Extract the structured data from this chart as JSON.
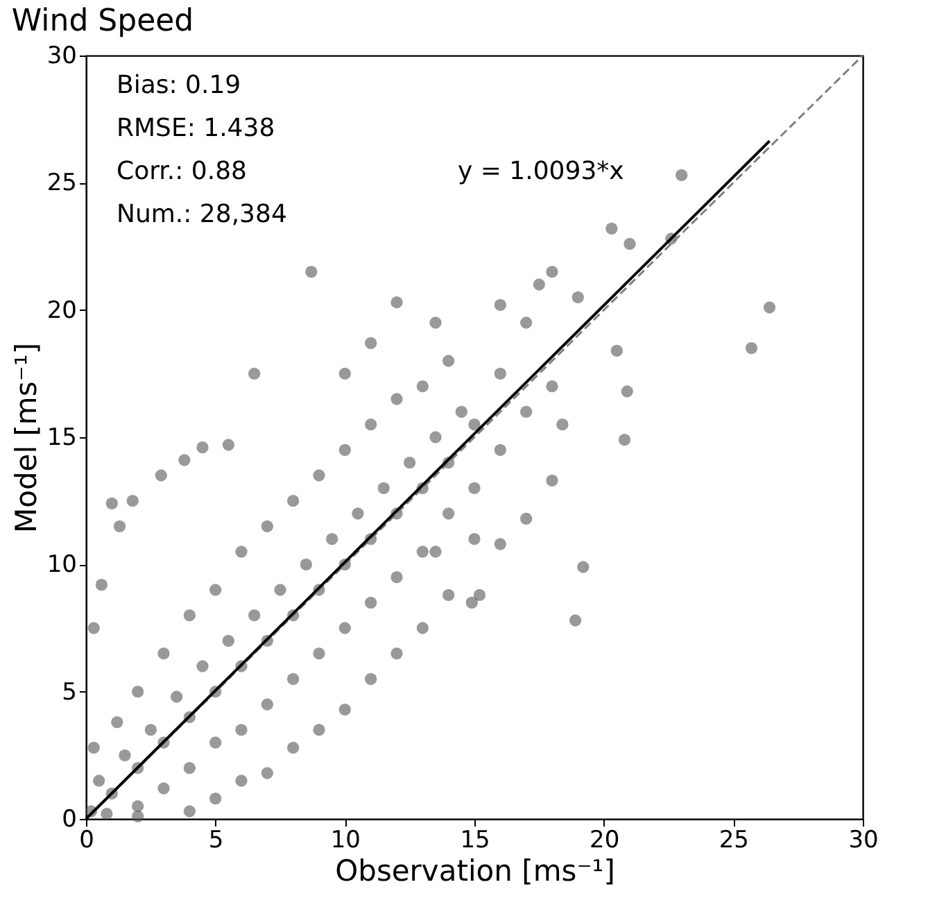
{
  "chart_data": {
    "type": "scatter",
    "title": "Wind Speed",
    "xlabel": "Observation [ms⁻¹]",
    "ylabel": "Model [ms⁻¹]",
    "xlim": [
      0,
      30
    ],
    "ylim": [
      0,
      30
    ],
    "xticks": [
      0,
      5,
      10,
      15,
      20,
      25,
      30
    ],
    "yticks": [
      0,
      5,
      10,
      15,
      20,
      25,
      30
    ],
    "grid": false,
    "annotations": [
      "Bias: 0.19",
      "RMSE: 1.438",
      "Corr.: 0.88",
      "Num.: 28,384",
      "y = 1.0093*x"
    ],
    "series": [
      {
        "color": "#555555",
        "marker": "circle",
        "x": [
          0.2,
          0.5,
          0.3,
          0.8,
          1,
          1.5,
          1.2,
          2,
          2,
          2.5,
          2,
          3,
          3,
          3.5,
          3,
          4,
          4,
          4.5,
          4,
          5,
          5,
          5.5,
          5,
          6,
          6,
          6.5,
          6,
          7,
          7,
          7.5,
          7,
          8,
          8,
          8.5,
          8,
          9,
          9,
          9.5,
          9,
          10,
          10,
          10.5,
          10,
          11,
          11,
          11.5,
          11,
          12,
          12,
          12.5,
          12,
          13,
          13,
          13.5,
          13,
          14,
          14,
          14.5,
          14,
          15,
          15,
          16,
          16,
          17,
          17,
          18,
          18,
          17.5,
          16,
          19,
          2,
          4,
          5,
          6,
          7,
          8,
          9,
          10,
          11,
          12,
          13,
          14,
          15.2,
          15,
          16,
          17,
          18,
          0.3,
          0.6,
          1.3,
          1.0,
          1.8,
          2.9,
          3.8,
          4.5,
          5.5,
          6.5,
          8.7,
          10,
          11,
          12,
          13.5,
          23.0,
          20.3,
          21.0,
          22.6,
          26.4,
          25.7,
          20.5,
          20.9,
          20.8,
          18.9,
          19.2,
          18.4,
          14.9,
          13.5
        ],
        "values": [
          0.3,
          1.5,
          2.8,
          0.2,
          1,
          2.5,
          3.8,
          0.5,
          2,
          3.5,
          5,
          1.2,
          3,
          4.8,
          6.5,
          2,
          4,
          6,
          8,
          3,
          5,
          7,
          9,
          3.5,
          6,
          8,
          10.5,
          4.5,
          7,
          9,
          11.5,
          5.5,
          8,
          10,
          12.5,
          6.5,
          9,
          11,
          13.5,
          7.5,
          10,
          12,
          14.5,
          8.5,
          11,
          13,
          15.5,
          9.5,
          12,
          14,
          16.5,
          10.5,
          13,
          15,
          17,
          12,
          14,
          16,
          18,
          13,
          15.5,
          14.5,
          17.5,
          16,
          19.5,
          17,
          21.5,
          21,
          20.2,
          20.5,
          0.1,
          0.3,
          0.8,
          1.5,
          1.8,
          2.8,
          3.5,
          4.3,
          5.5,
          6.5,
          7.5,
          8.8,
          8.8,
          11,
          10.8,
          11.8,
          13.3,
          7.5,
          9.2,
          11.5,
          12.4,
          12.5,
          13.5,
          14.1,
          14.6,
          14.7,
          17.5,
          21.5,
          17.5,
          18.7,
          20.3,
          19.5,
          25.3,
          23.2,
          22.6,
          22.8,
          20.1,
          18.5,
          18.4,
          16.8,
          14.9,
          7.8,
          9.9,
          15.5,
          8.5,
          10.5
        ]
      },
      {
        "type": "line",
        "color": "#808080",
        "line_style": "dashed",
        "x": [
          0,
          30
        ],
        "values": [
          0,
          30
        ]
      },
      {
        "type": "line",
        "color": "#000000",
        "line_style": "solid",
        "x": [
          0,
          26.4
        ],
        "values": [
          0,
          26.64
        ]
      }
    ]
  }
}
